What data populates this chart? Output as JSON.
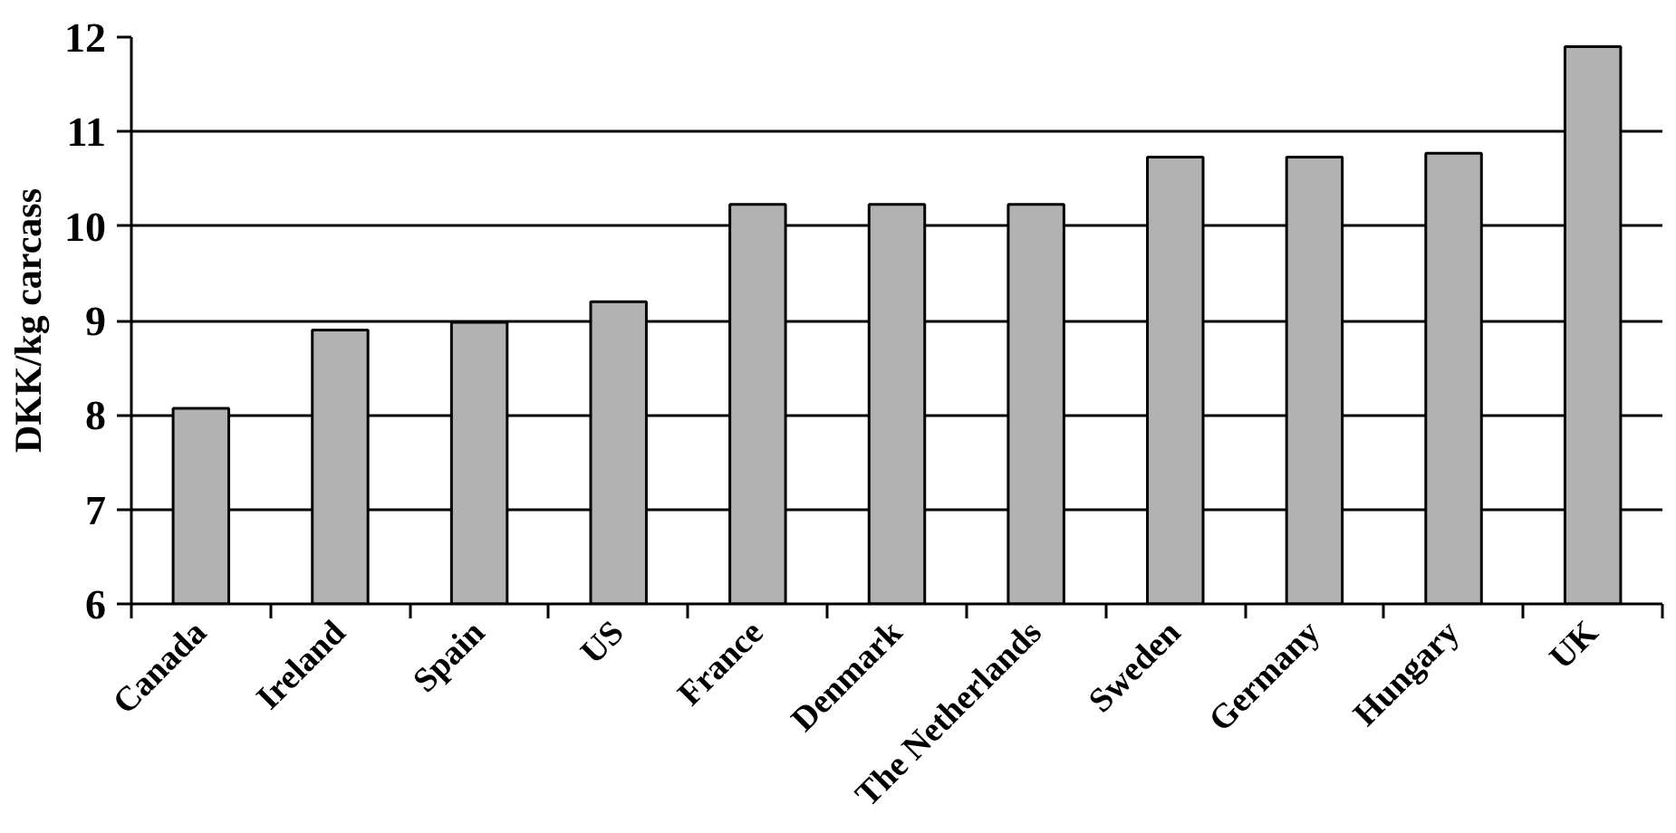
{
  "chart_data": {
    "type": "bar",
    "ylabel": "DKK/kg carcass",
    "categories": [
      "Canada",
      "Ireland",
      "Spain",
      "US",
      "France",
      "Denmark",
      "The Netherlands",
      "Sweden",
      "Germany",
      "Hungary",
      "UK"
    ],
    "values": [
      8.07,
      8.9,
      8.98,
      9.2,
      10.23,
      10.23,
      10.23,
      10.73,
      10.73,
      10.77,
      11.9
    ],
    "color": "#b2b2b2",
    "ylim": [
      6,
      12
    ],
    "yticks": [
      6,
      7,
      8,
      9,
      10,
      11,
      12
    ],
    "grid": "y"
  }
}
